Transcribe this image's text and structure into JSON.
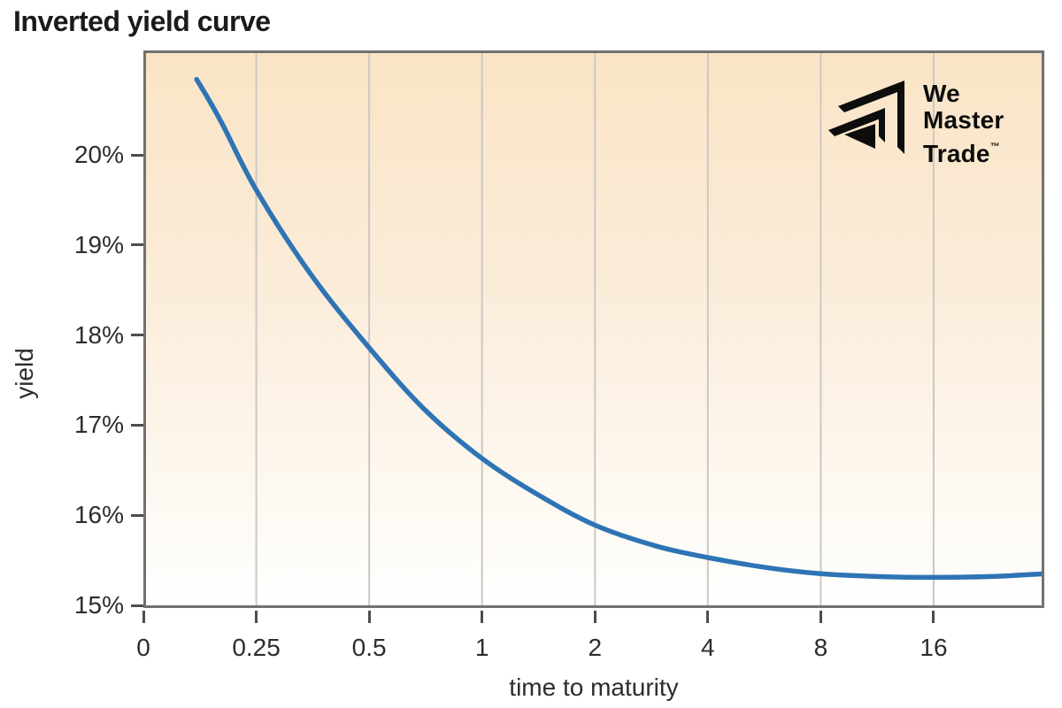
{
  "page": {
    "title": "Inverted yield curve"
  },
  "logo": {
    "name": "we-master-trade-logo",
    "line1": "We",
    "line2": "Master",
    "line3": "Trade",
    "tm": "™"
  },
  "chart_data": {
    "type": "line",
    "title": "Inverted yield curve",
    "xlabel": "time to maturity",
    "ylabel": "yield",
    "x_scale": "doubling ticks equally spaced (log2); segment 0 to 0.25 linear",
    "x_ticks": [
      {
        "label": "0",
        "t": 0
      },
      {
        "label": "0.25",
        "t": 0.25
      },
      {
        "label": "0.5",
        "t": 0.5
      },
      {
        "label": "1",
        "t": 1
      },
      {
        "label": "2",
        "t": 2
      },
      {
        "label": "4",
        "t": 4
      },
      {
        "label": "8",
        "t": 8
      },
      {
        "label": "16",
        "t": 16
      }
    ],
    "y_ticks": [
      {
        "label": "20%",
        "value": 20
      },
      {
        "label": "19%",
        "value": 19
      },
      {
        "label": "18%",
        "value": 18
      },
      {
        "label": "17%",
        "value": 17
      },
      {
        "label": "16%",
        "value": 16
      },
      {
        "label": "15%",
        "value": 15
      }
    ],
    "ylim": [
      15,
      21.19
    ],
    "xlim_t": [
      0,
      31.6
    ],
    "grid": "vertical gridlines at each x tick, full plot height",
    "series": [
      {
        "name": "yield curve",
        "color": "#2E74B5",
        "points": [
          [
            0.118,
            20.87
          ],
          [
            0.17,
            20.42
          ],
          [
            0.25,
            19.64
          ],
          [
            0.35,
            18.7
          ],
          [
            0.5,
            17.89
          ],
          [
            0.7,
            17.21
          ],
          [
            1,
            16.66
          ],
          [
            1.42,
            16.25
          ],
          [
            2,
            15.92
          ],
          [
            2.9,
            15.69
          ],
          [
            4,
            15.56
          ],
          [
            5.7,
            15.45
          ],
          [
            8,
            15.38
          ],
          [
            11.2,
            15.35
          ],
          [
            16,
            15.34
          ],
          [
            22.8,
            15.35
          ],
          [
            31.6,
            15.38
          ]
        ]
      }
    ],
    "colors": {
      "curve": "#2E74B5",
      "plot_bg_top": "#FAE4C5",
      "plot_bg_bottom": "#FFFFFF",
      "gridline": "#CBC8C4",
      "axis_border": "#717171",
      "tick": "#4D4D4D",
      "label_text": "#2D2D2D",
      "title_text": "#1B1B1B",
      "logo": "#0D0D0D"
    }
  }
}
